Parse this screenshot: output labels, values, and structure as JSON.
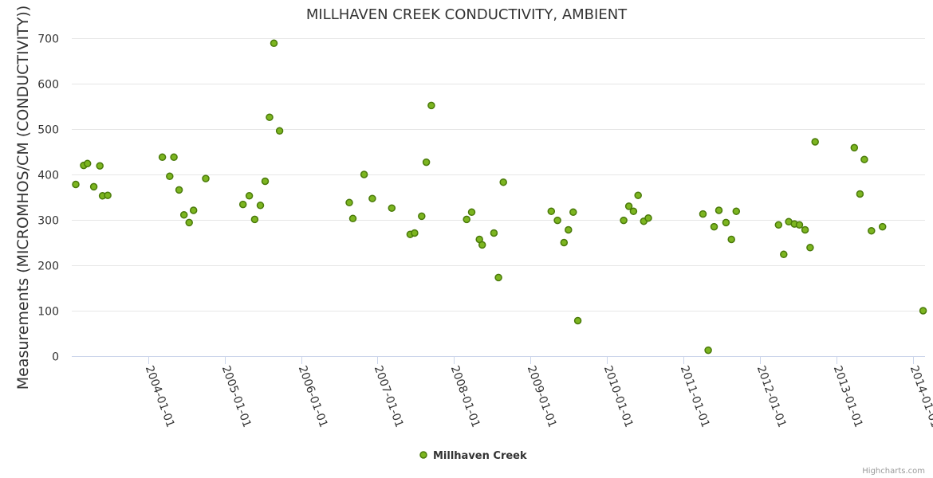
{
  "chart_data": {
    "type": "scatter",
    "title": "MILLHAVEN CREEK CONDUCTIVITY, AMBIENT",
    "ylabel": "Measurements (MICROMHOS/CM (CONDUCTIVITY))",
    "xlabel": "",
    "ylim": [
      0,
      700
    ],
    "xlim": [
      "2003-01-01",
      "2014-03-01"
    ],
    "yticks": [
      0,
      100,
      200,
      300,
      400,
      500,
      600,
      700
    ],
    "ytick_labels": [
      "0",
      "100",
      "200",
      "300",
      "400",
      "500",
      "600",
      "700"
    ],
    "xticks": [
      "2004-01-01",
      "2005-01-01",
      "2006-01-01",
      "2007-01-01",
      "2008-01-01",
      "2009-01-01",
      "2010-01-01",
      "2011-01-01",
      "2012-01-01",
      "2013-01-01",
      "2014-01-01"
    ],
    "grid": true,
    "legend": "bottom-center",
    "color": "#7cb520",
    "series": [
      {
        "name": "Millhaven Creek",
        "points": [
          [
            "2003-01-20",
            378
          ],
          [
            "2003-02-27",
            420
          ],
          [
            "2003-03-17",
            424
          ],
          [
            "2003-04-16",
            373
          ],
          [
            "2003-05-15",
            419
          ],
          [
            "2003-05-28",
            353
          ],
          [
            "2003-06-22",
            354
          ],
          [
            "2004-03-09",
            438
          ],
          [
            "2004-04-13",
            396
          ],
          [
            "2004-05-03",
            438
          ],
          [
            "2004-05-28",
            366
          ],
          [
            "2004-06-20",
            311
          ],
          [
            "2004-07-15",
            294
          ],
          [
            "2004-08-05",
            321
          ],
          [
            "2004-10-02",
            391
          ],
          [
            "2005-03-29",
            334
          ],
          [
            "2005-04-28",
            353
          ],
          [
            "2005-05-24",
            301
          ],
          [
            "2005-06-20",
            332
          ],
          [
            "2005-07-13",
            385
          ],
          [
            "2005-08-03",
            526
          ],
          [
            "2005-08-24",
            689
          ],
          [
            "2005-09-20",
            496
          ],
          [
            "2006-08-19",
            338
          ],
          [
            "2006-09-05",
            303
          ],
          [
            "2006-10-29",
            400
          ],
          [
            "2006-12-07",
            347
          ],
          [
            "2007-03-10",
            326
          ],
          [
            "2007-06-06",
            268
          ],
          [
            "2007-06-27",
            271
          ],
          [
            "2007-07-31",
            308
          ],
          [
            "2007-08-22",
            427
          ],
          [
            "2007-09-15",
            552
          ],
          [
            "2008-03-02",
            301
          ],
          [
            "2008-03-26",
            317
          ],
          [
            "2008-05-02",
            257
          ],
          [
            "2008-05-15",
            245
          ],
          [
            "2008-07-10",
            271
          ],
          [
            "2008-08-01",
            173
          ],
          [
            "2008-08-24",
            383
          ],
          [
            "2009-04-10",
            319
          ],
          [
            "2009-05-10",
            299
          ],
          [
            "2009-06-10",
            250
          ],
          [
            "2009-07-01",
            278
          ],
          [
            "2009-07-24",
            317
          ],
          [
            "2009-08-15",
            78
          ],
          [
            "2010-03-22",
            299
          ],
          [
            "2010-04-16",
            330
          ],
          [
            "2010-05-08",
            319
          ],
          [
            "2010-05-30",
            354
          ],
          [
            "2010-06-26",
            297
          ],
          [
            "2010-07-18",
            304
          ],
          [
            "2011-04-05",
            313
          ],
          [
            "2011-04-30",
            13
          ],
          [
            "2011-05-28",
            285
          ],
          [
            "2011-06-20",
            321
          ],
          [
            "2011-07-24",
            294
          ],
          [
            "2011-08-19",
            257
          ],
          [
            "2011-09-11",
            319
          ],
          [
            "2012-03-31",
            289
          ],
          [
            "2012-04-25",
            224
          ],
          [
            "2012-05-19",
            296
          ],
          [
            "2012-06-15",
            291
          ],
          [
            "2012-07-09",
            289
          ],
          [
            "2012-08-05",
            278
          ],
          [
            "2012-08-29",
            239
          ],
          [
            "2012-09-22",
            472
          ],
          [
            "2013-03-28",
            459
          ],
          [
            "2013-04-24",
            357
          ],
          [
            "2013-05-15",
            433
          ],
          [
            "2013-06-18",
            276
          ],
          [
            "2013-08-10",
            285
          ],
          [
            "2014-02-20",
            100
          ]
        ]
      }
    ]
  },
  "credits": "Highcharts.com"
}
